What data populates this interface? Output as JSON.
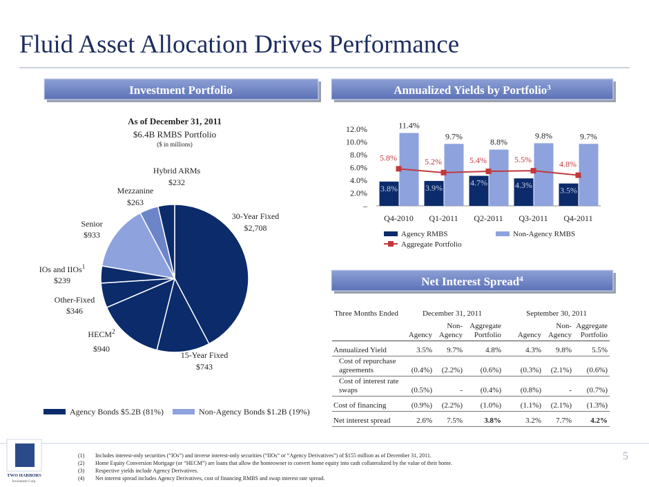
{
  "title": "Fluid Asset Allocation Drives Performance",
  "page_number": "5",
  "sections": [
    {
      "text": "Investment Portfolio"
    },
    {
      "text": "Annualized Yields by Portfolio",
      "note": "3"
    },
    {
      "text": "Net Interest Spread",
      "note": "4"
    }
  ],
  "chart_data": [
    {
      "type": "pie",
      "title": "As of December 31, 2011",
      "subtitle": "$6.4B RMBS Portfolio",
      "unit_note": "($ in millions)",
      "categories": [
        "30-Year Fixed",
        "15-Year Fixed",
        "HECM",
        "Other-Fixed",
        "IOs and IIOs",
        "Senior",
        "Mezzanine",
        "Hybrid ARMs"
      ],
      "category_notes": [
        null,
        null,
        "2",
        null,
        "1",
        null,
        null,
        null
      ],
      "values": [
        2708,
        743,
        940,
        346,
        239,
        933,
        263,
        232
      ],
      "value_labels": [
        "$2,708",
        "$743",
        "$940",
        "$346",
        "$239",
        "$933",
        "$263",
        "$232"
      ],
      "colors": [
        "#0b2b6b",
        "#0b2b6b",
        "#0b2b6b",
        "#0b2b6b",
        "#0b2b6b",
        "#8ea2dd",
        "#6c84c8",
        "#0b2b6b"
      ],
      "legend": [
        {
          "name": "Agency Bonds $5.2B (81%)",
          "color": "#0b2b6b"
        },
        {
          "name": "Non-Agency Bonds $1.2B (19%)",
          "color": "#8ea2dd"
        }
      ]
    },
    {
      "type": "bar_line",
      "categories": [
        "Q4-2010",
        "Q1-2011",
        "Q2-2011",
        "Q3-2011",
        "Q4-2011"
      ],
      "ylim": [
        0,
        12
      ],
      "yticks": [
        {
          "value": 0,
          "label": "–"
        },
        {
          "value": 2,
          "label": "2.0%"
        },
        {
          "value": 4,
          "label": "4.0%"
        },
        {
          "value": 6,
          "label": "6.0%"
        },
        {
          "value": 8,
          "label": "8.0%"
        },
        {
          "value": 10,
          "label": "10.0%"
        },
        {
          "value": 12,
          "label": "12.0%"
        }
      ],
      "series": [
        {
          "name": "Agency RMBS",
          "type": "bar",
          "color": "#0b2b6b",
          "values": [
            3.8,
            3.9,
            4.7,
            4.3,
            3.5
          ],
          "value_labels": [
            "3.8%",
            "3.9%",
            "4.7%",
            "4.3%",
            "3.5%"
          ]
        },
        {
          "name": "Non-Agency RMBS",
          "type": "bar",
          "color": "#8ea2dd",
          "values": [
            11.4,
            9.7,
            8.8,
            9.8,
            9.7
          ],
          "value_labels": [
            "11.4%",
            "9.7%",
            "8.8%",
            "9.8%",
            "9.7%"
          ]
        },
        {
          "name": "Aggregate Portfolio",
          "type": "line",
          "color": "#c0393b",
          "values": [
            5.8,
            5.2,
            5.4,
            5.5,
            4.8
          ],
          "value_labels": [
            "5.8%",
            "5.2%",
            "5.4%",
            "5.5%",
            "4.8%"
          ]
        }
      ]
    }
  ],
  "table": {
    "period_header": "Three Months Ended",
    "periods": [
      "December 31, 2011",
      "September 30, 2011"
    ],
    "columns": [
      "Agency",
      "Non-Agency",
      "Aggregate Portfolio",
      "Agency",
      "Non-Agency",
      "Aggregate Portfolio"
    ],
    "rows": [
      {
        "label": "Annualized Yield",
        "cells": [
          "3.5%",
          "9.7%",
          "4.8%",
          "4.3%",
          "9.8%",
          "5.5%"
        ]
      },
      {
        "label": "Cost of repurchase agreements",
        "indent": true,
        "cells": [
          "(0.4%)",
          "(2.2%)",
          "(0.6%)",
          "(0.3%)",
          "(2.1%)",
          "(0.6%)"
        ]
      },
      {
        "label": "Cost of interest rate swaps",
        "indent": true,
        "cells": [
          "(0.5%)",
          "-",
          "(0.4%)",
          "(0.8%)",
          "-",
          "(0.7%)"
        ]
      },
      {
        "label": "Cost of financing",
        "cells": [
          "(0.9%)",
          "(2.2%)",
          "(1.0%)",
          "(1.1%)",
          "(2.1%)",
          "(1.3%)"
        ]
      },
      {
        "label": "Net interest spread",
        "cells": [
          "2.6%",
          "7.5%",
          "3.8%",
          "3.2%",
          "7.7%",
          "4.2%"
        ]
      }
    ]
  },
  "footnotes": [
    {
      "marker": "(1)",
      "text": "Includes interest-only securities (“IOs”) and inverse interest-only securities (“IIOs” or “Agency Derivatives”) of $155 million as of December 31, 2011."
    },
    {
      "marker": "(2)",
      "text": "Home Equity Conversion Mortgage (or “HECM”) are loans that allow the homeowner to convert home equity into cash collateralized by the value of their home."
    },
    {
      "marker": "(3)",
      "text": "Respective yields include Agency Derivatives."
    },
    {
      "marker": "(4)",
      "text": "Net interest spread includes Agency Derivatives, cost of financing RMBS and swap interest rate spread."
    }
  ],
  "logo": {
    "name": "TWO HARBORS",
    "subtitle": "Investment Corp."
  }
}
